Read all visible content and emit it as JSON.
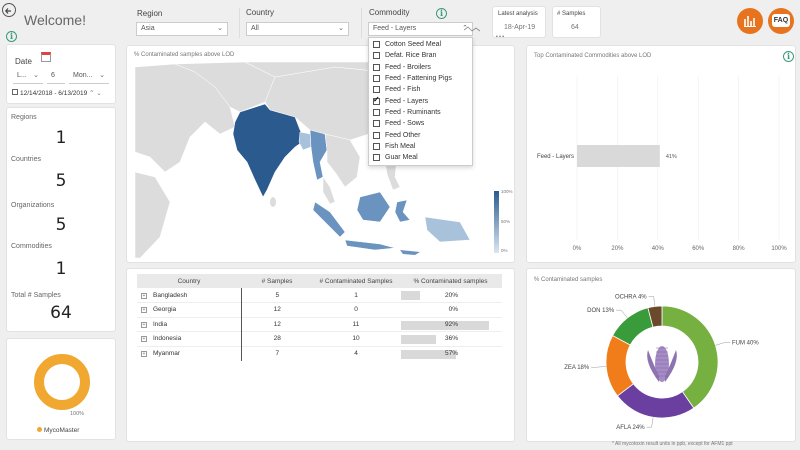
{
  "header": {
    "title": "Welcome!",
    "back_icon": "back-arrow-icon"
  },
  "filters": {
    "region": {
      "label": "Region",
      "value": "Asia"
    },
    "country": {
      "label": "Country",
      "value": "All"
    },
    "commodity": {
      "label": "Commodity",
      "value": "Feed - Layers"
    },
    "latest_analysis": {
      "label": "Latest analysis",
      "value": "18-Apr-19"
    },
    "samples": {
      "label": "# Samples",
      "value": "64"
    }
  },
  "commodity_options": [
    {
      "label": "Cotton Seed Meal",
      "checked": false
    },
    {
      "label": "Defat. Rice Bran",
      "checked": false
    },
    {
      "label": "Feed - Broilers",
      "checked": false
    },
    {
      "label": "Feed - Fattening Pigs",
      "checked": false
    },
    {
      "label": "Feed - Fish",
      "checked": false
    },
    {
      "label": "Feed - Layers",
      "checked": true
    },
    {
      "label": "Feed - Ruminants",
      "checked": false
    },
    {
      "label": "Feed - Sows",
      "checked": false
    },
    {
      "label": "Feed Other",
      "checked": false
    },
    {
      "label": "Fish Meal",
      "checked": false
    },
    {
      "label": "Guar Meal",
      "checked": false
    }
  ],
  "date": {
    "label": "Date",
    "unit": "L...",
    "count": "6",
    "period": "Mon...",
    "range": "12/14/2018 - 6/13/2019"
  },
  "kpis": [
    {
      "label": "Regions",
      "value": "1"
    },
    {
      "label": "Countries",
      "value": "5"
    },
    {
      "label": "Organizations",
      "value": "5"
    },
    {
      "label": "Commodities",
      "value": "1"
    },
    {
      "label": "Total # Samples",
      "value": "64"
    }
  ],
  "brand": {
    "gauge_label": "100%",
    "legend": "MycoMaster",
    "color": "#f0a830"
  },
  "map": {
    "title": "% Contaminated samples above LOD",
    "legend_ticks": [
      "100%",
      "50%",
      "0%"
    ]
  },
  "top_commodities": {
    "title": "Top Contaminated Commodities above LOD"
  },
  "table": {
    "headers": [
      "Country",
      "# Samples",
      "# Contaminated Samples",
      "% Contaminated samples"
    ],
    "rows": [
      {
        "country": "Bangladesh",
        "samples": "5",
        "contaminated": "1",
        "pct": "20%",
        "pct_value": 0.2
      },
      {
        "country": "Georgia",
        "samples": "12",
        "contaminated": "0",
        "pct": "0%",
        "pct_value": 0
      },
      {
        "country": "India",
        "samples": "12",
        "contaminated": "11",
        "pct": "92%",
        "pct_value": 0.92
      },
      {
        "country": "Indonesia",
        "samples": "28",
        "contaminated": "10",
        "pct": "36%",
        "pct_value": 0.36
      },
      {
        "country": "Myanmar",
        "samples": "7",
        "contaminated": "4",
        "pct": "57%",
        "pct_value": 0.57
      }
    ]
  },
  "donut_title": "% Contaminated samples",
  "footnote": "* All mycotoxin result units in ppb, except for AFM1 ppt",
  "colors": {
    "map_dark": "#2b5a8e",
    "map_mid": "#6a93c0",
    "map_light": "#a9c2dc",
    "map_land": "#dcdcdc",
    "orange": "#e8731e"
  },
  "chart_data": [
    {
      "type": "bar",
      "orientation": "horizontal",
      "title": "Top Contaminated Commodities above LOD",
      "categories": [
        "Feed - Layers"
      ],
      "values": [
        41
      ],
      "data_labels": [
        "41%"
      ],
      "xlim": [
        0,
        100
      ],
      "xticks": [
        "0%",
        "20%",
        "40%",
        "60%",
        "80%",
        "100%"
      ]
    },
    {
      "type": "pie",
      "title": "% Contaminated samples",
      "donut": true,
      "slices": [
        {
          "name": "FUM",
          "value": 40,
          "label": "FUM 40%",
          "color": "#76b041"
        },
        {
          "name": "AFLA",
          "value": 24,
          "label": "AFLA 24%",
          "color": "#6b3fa0"
        },
        {
          "name": "ZEA",
          "value": 18,
          "label": "ZEA 18%",
          "color": "#f07d1a"
        },
        {
          "name": "DON",
          "value": 13,
          "label": "DON 13%",
          "color": "#3a9b3a"
        },
        {
          "name": "OCHRA",
          "value": 4,
          "label": "OCHRA 4%",
          "color": "#6b4a2b"
        }
      ]
    }
  ]
}
